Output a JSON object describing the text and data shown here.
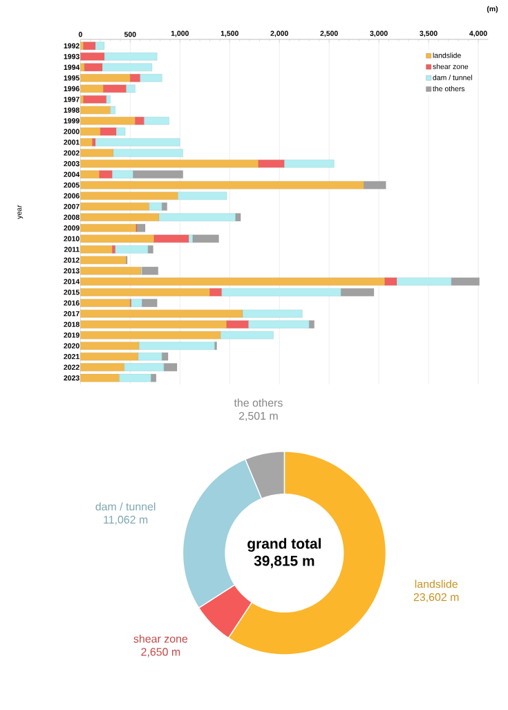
{
  "chart_data": [
    {
      "type": "bar",
      "orientation": "horizontal",
      "stacked": true,
      "ylabel": "year",
      "annotations": [
        "(m)"
      ],
      "legend": "top right",
      "grid": "x",
      "categories": [
        "1992",
        "1993",
        "1994",
        "1995",
        "1996",
        "1997",
        "1998",
        "1999",
        "2000",
        "2001",
        "2002",
        "2003",
        "2004",
        "2005",
        "2006",
        "2007",
        "2008",
        "2009",
        "2010",
        "2011",
        "2012",
        "2013",
        "2014",
        "2015",
        "2016",
        "2017",
        "2018",
        "2019",
        "2020",
        "2021",
        "2022",
        "2023"
      ],
      "xlim": [
        0,
        4100
      ],
      "xticks": [
        0,
        500,
        {
          "value": 1000,
          "label": "1,000"
        },
        {
          "value": 1500,
          "label": "1,500"
        },
        {
          "value": 2000,
          "label": "2,000"
        },
        {
          "value": 2500,
          "label": "2,500"
        },
        {
          "value": 3000,
          "label": "3,000"
        },
        {
          "value": 3500,
          "label": "3,500"
        },
        {
          "value": 4000,
          "label": "4,000"
        }
      ],
      "series": [
        {
          "name": "landslide",
          "color": "#f2b84b",
          "values": [
            30,
            null,
            40,
            500,
            230,
            30,
            300,
            550,
            200,
            120,
            330,
            1790,
            190,
            2850,
            980,
            690,
            790,
            560,
            740,
            320,
            460,
            610,
            3060,
            1300,
            500,
            1630,
            1470,
            1410,
            590,
            580,
            440,
            390
          ]
        },
        {
          "name": "shear zone",
          "color": "#f06060",
          "values": [
            120,
            240,
            180,
            100,
            230,
            230,
            null,
            90,
            160,
            30,
            null,
            260,
            130,
            null,
            null,
            null,
            null,
            10,
            350,
            30,
            null,
            null,
            120,
            120,
            10,
            null,
            220,
            null,
            null,
            null,
            null,
            null
          ]
        },
        {
          "name": "dam / tunnel",
          "color": "#b2eef2",
          "values": [
            90,
            530,
            500,
            220,
            90,
            40,
            50,
            250,
            90,
            850,
            700,
            500,
            210,
            null,
            490,
            130,
            770,
            null,
            40,
            330,
            null,
            10,
            550,
            1200,
            110,
            600,
            610,
            530,
            760,
            240,
            400,
            320
          ]
        },
        {
          "name": "the others",
          "color": "#a0a0a0",
          "values": [
            null,
            null,
            null,
            null,
            null,
            null,
            null,
            null,
            null,
            null,
            null,
            null,
            500,
            220,
            null,
            50,
            50,
            80,
            260,
            50,
            10,
            160,
            280,
            330,
            150,
            null,
            50,
            null,
            20,
            60,
            130,
            50
          ]
        }
      ]
    },
    {
      "type": "donut",
      "categories": [
        "landslide",
        "shear zone",
        "dam / tunnel",
        "the others"
      ],
      "values": [
        23602,
        2650,
        11062,
        2501
      ],
      "colors": [
        "#fbb62c",
        "#f55a5a",
        "#9ed0de",
        "#a6a6a6"
      ],
      "value_labels": [
        "23,602 m",
        "2,650 m",
        "11,062 m",
        "2,501 m"
      ],
      "annotations": [
        "grand total",
        "39,815 m"
      ]
    }
  ]
}
